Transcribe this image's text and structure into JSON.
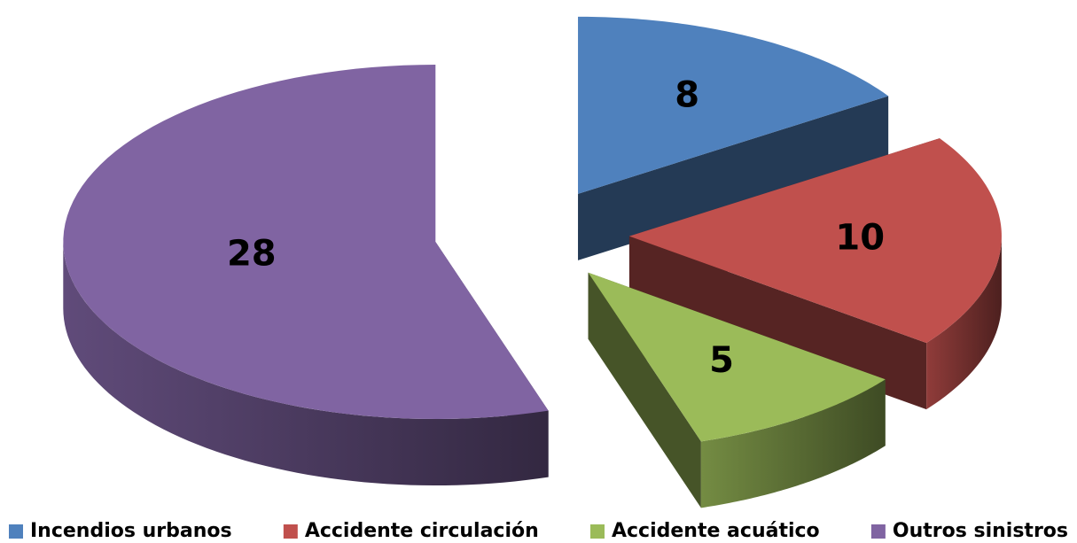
{
  "chart_data": {
    "type": "pie",
    "3d": true,
    "exploded": true,
    "categories": [
      "Incendios urbanos",
      "Accidente circulación",
      "Accidente acuático",
      "Outros sinistros"
    ],
    "values": [
      8,
      10,
      5,
      28
    ],
    "colors": [
      "#4f81bd",
      "#c0504d",
      "#9bbb59",
      "#8064a2"
    ],
    "legend": "bottom"
  }
}
